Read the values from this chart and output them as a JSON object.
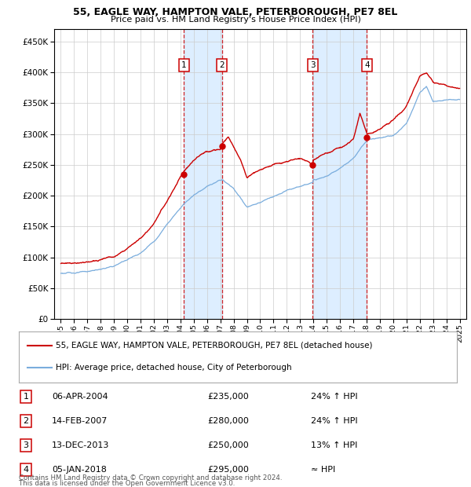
{
  "title1": "55, EAGLE WAY, HAMPTON VALE, PETERBOROUGH, PE7 8EL",
  "title2": "Price paid vs. HM Land Registry's House Price Index (HPI)",
  "transactions": [
    {
      "num": 1,
      "date": "06-APR-2004",
      "price": 235000,
      "rel": "24% ↑ HPI",
      "year": 2004.26
    },
    {
      "num": 2,
      "date": "14-FEB-2007",
      "price": 280000,
      "rel": "24% ↑ HPI",
      "year": 2007.12
    },
    {
      "num": 3,
      "date": "13-DEC-2013",
      "price": 250000,
      "rel": "13% ↑ HPI",
      "year": 2013.95
    },
    {
      "num": 4,
      "date": "05-JAN-2018",
      "price": 295000,
      "rel": "≈ HPI",
      "year": 2018.03
    }
  ],
  "hpi_color": "#7aaddd",
  "price_color": "#cc0000",
  "shade_color": "#ddeeff",
  "background_color": "#ffffff",
  "grid_color": "#cccccc",
  "ylim": [
    0,
    470000
  ],
  "xlim_start": 1994.5,
  "xlim_end": 2025.5,
  "yticks": [
    0,
    50000,
    100000,
    150000,
    200000,
    250000,
    300000,
    350000,
    400000,
    450000
  ],
  "xticks": [
    1995,
    1996,
    1997,
    1998,
    1999,
    2000,
    2001,
    2002,
    2003,
    2004,
    2005,
    2006,
    2007,
    2008,
    2009,
    2010,
    2011,
    2012,
    2013,
    2014,
    2015,
    2016,
    2017,
    2018,
    2019,
    2020,
    2021,
    2022,
    2023,
    2024,
    2025
  ],
  "legend_line1": "55, EAGLE WAY, HAMPTON VALE, PETERBOROUGH, PE7 8EL (detached house)",
  "legend_line2": "HPI: Average price, detached house, City of Peterborough",
  "footnote1": "Contains HM Land Registry data © Crown copyright and database right 2024.",
  "footnote2": "This data is licensed under the Open Government Licence v3.0."
}
